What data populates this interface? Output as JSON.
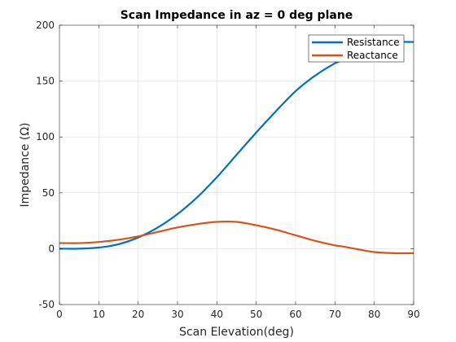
{
  "chart_data": {
    "type": "line",
    "title": "Scan Impedance in az = 0 deg plane",
    "xlabel": "Scan Elevation(deg)",
    "ylabel": "Impedance (Ω)",
    "xlim": [
      0,
      90
    ],
    "ylim": [
      -50,
      200
    ],
    "xticks": [
      0,
      10,
      20,
      30,
      40,
      50,
      60,
      70,
      80,
      90
    ],
    "yticks": [
      -50,
      0,
      50,
      100,
      150,
      200
    ],
    "grid": true,
    "box": true,
    "legend_position": "top-right",
    "x": [
      0,
      5,
      10,
      15,
      20,
      25,
      30,
      35,
      40,
      45,
      50,
      55,
      60,
      65,
      70,
      72,
      75,
      80,
      85,
      90
    ],
    "series": [
      {
        "name": "Resistance",
        "color": "#0072bd",
        "values": [
          0,
          0,
          1,
          4,
          10,
          19,
          31,
          46,
          64,
          84,
          104,
          123,
          141,
          155,
          166,
          169,
          176,
          183,
          185,
          185
        ]
      },
      {
        "name": "Reactance",
        "color": "#d95319",
        "values": [
          5,
          5,
          6,
          8,
          11,
          15,
          19,
          22,
          24,
          24,
          21,
          17,
          12,
          7,
          3,
          2,
          0,
          -3,
          -4,
          -4
        ]
      }
    ]
  }
}
